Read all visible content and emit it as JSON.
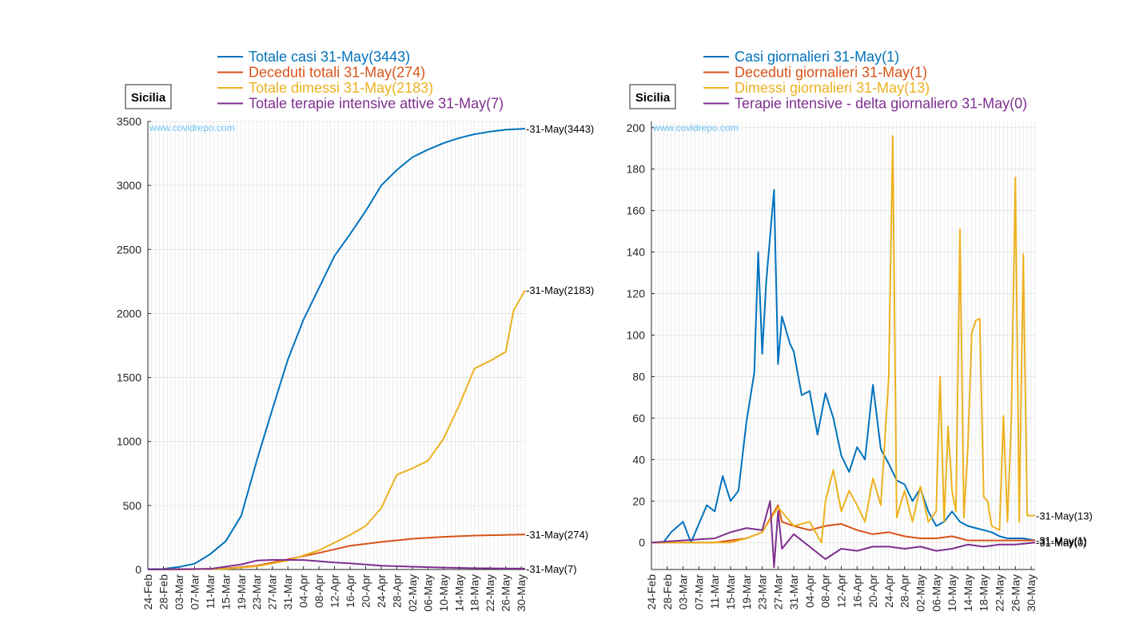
{
  "colors": {
    "blue": "#0072BD",
    "orange": "#D95319",
    "yellow": "#EDB120",
    "purple": "#7E2F8E"
  },
  "chart_data": [
    {
      "type": "line",
      "region_label": "Sicilia",
      "watermark": "www.covidrepo.com",
      "ylim": [
        0,
        3500
      ],
      "yticks": [
        0,
        500,
        1000,
        1500,
        2000,
        2500,
        3000,
        3500
      ],
      "x_start": "2020-02-24",
      "x_end": "2020-05-31",
      "xtick_labels": [
        "24-Feb",
        "28-Feb",
        "03-Mar",
        "07-Mar",
        "11-Mar",
        "15-Mar",
        "19-Mar",
        "23-Mar",
        "27-Mar",
        "31-Mar",
        "04-Apr",
        "08-Apr",
        "12-Apr",
        "16-Apr",
        "20-Apr",
        "24-Apr",
        "28-Apr",
        "02-May",
        "06-May",
        "10-May",
        "14-May",
        "18-May",
        "22-May",
        "26-May",
        "30-May"
      ],
      "grid": true,
      "legend_position": "top",
      "series": [
        {
          "name": "Totale casi 31-May(3443)",
          "color": "#0072BD",
          "end_label": "-31-May(3443)",
          "x": [
            "24-Feb",
            "28-Feb",
            "03-Mar",
            "07-Mar",
            "11-Mar",
            "15-Mar",
            "19-Mar",
            "23-Mar",
            "27-Mar",
            "31-Mar",
            "04-Apr",
            "08-Apr",
            "12-Apr",
            "16-Apr",
            "20-Apr",
            "24-Apr",
            "28-Apr",
            "02-May",
            "06-May",
            "10-May",
            "14-May",
            "18-May",
            "22-May",
            "26-May",
            "31-May"
          ],
          "y": [
            3,
            5,
            20,
            45,
            120,
            220,
            420,
            850,
            1250,
            1640,
            1950,
            2200,
            2450,
            2620,
            2800,
            3000,
            3120,
            3220,
            3280,
            3330,
            3370,
            3400,
            3420,
            3435,
            3443
          ]
        },
        {
          "name": "Deceduti totali 31-May(274)",
          "color": "#D95319",
          "end_label": "-31-May(274)",
          "x": [
            "24-Feb",
            "07-Mar",
            "15-Mar",
            "23-Mar",
            "31-Mar",
            "08-Apr",
            "16-Apr",
            "24-Apr",
            "02-May",
            "10-May",
            "18-May",
            "31-May"
          ],
          "y": [
            0,
            2,
            8,
            30,
            80,
            130,
            185,
            215,
            240,
            255,
            265,
            274
          ]
        },
        {
          "name": "Totale dimessi 31-May(2183)",
          "color": "#EDB120",
          "end_label": "-31-May(2183)",
          "x": [
            "24-Feb",
            "15-Mar",
            "23-Mar",
            "31-Mar",
            "08-Apr",
            "16-Apr",
            "20-Apr",
            "24-Apr",
            "28-Apr",
            "02-May",
            "06-May",
            "10-May",
            "14-May",
            "18-May",
            "22-May",
            "26-May",
            "28-May",
            "31-May"
          ],
          "y": [
            0,
            5,
            25,
            70,
            150,
            270,
            340,
            480,
            740,
            790,
            850,
            1020,
            1280,
            1570,
            1630,
            1700,
            2020,
            2183
          ]
        },
        {
          "name": "Totale terapie intensive attive 31-May(7)",
          "color": "#7E2F8E",
          "end_label": "-31-May(7)",
          "x": [
            "24-Feb",
            "11-Mar",
            "19-Mar",
            "23-Mar",
            "27-Mar",
            "31-Mar",
            "04-Apr",
            "08-Apr",
            "12-Apr",
            "16-Apr",
            "24-Apr",
            "02-May",
            "10-May",
            "18-May",
            "26-May",
            "31-May"
          ],
          "y": [
            0,
            5,
            40,
            70,
            75,
            75,
            74,
            65,
            55,
            48,
            30,
            22,
            15,
            10,
            8,
            7
          ]
        }
      ]
    },
    {
      "type": "line",
      "region_label": "Sicilia",
      "watermark": "www.covidrepo.com",
      "ylim": [
        -13,
        203
      ],
      "yticks": [
        0,
        20,
        40,
        60,
        80,
        100,
        120,
        140,
        160,
        180,
        200
      ],
      "x_start": "2020-02-24",
      "x_end": "2020-05-31",
      "xtick_labels": [
        "24-Feb",
        "28-Feb",
        "03-Mar",
        "07-Mar",
        "11-Mar",
        "15-Mar",
        "19-Mar",
        "23-Mar",
        "27-Mar",
        "31-Mar",
        "04-Apr",
        "08-Apr",
        "12-Apr",
        "16-Apr",
        "20-Apr",
        "24-Apr",
        "28-Apr",
        "02-May",
        "06-May",
        "10-May",
        "14-May",
        "18-May",
        "22-May",
        "26-May",
        "30-May"
      ],
      "grid": true,
      "legend_position": "top",
      "series": [
        {
          "name": "Casi giornalieri 31-May(1)",
          "color": "#0072BD",
          "end_label": "-31-May(1)",
          "x": [
            "24-Feb",
            "27-Feb",
            "29-Feb",
            "03-Mar",
            "05-Mar",
            "09-Mar",
            "11-Mar",
            "13-Mar",
            "15-Mar",
            "17-Mar",
            "19-Mar",
            "21-Mar",
            "22-Mar",
            "23-Mar",
            "24-Mar",
            "26-Mar",
            "27-Mar",
            "28-Mar",
            "30-Mar",
            "31-Mar",
            "02-Apr",
            "04-Apr",
            "06-Apr",
            "08-Apr",
            "10-Apr",
            "12-Apr",
            "14-Apr",
            "16-Apr",
            "18-Apr",
            "20-Apr",
            "22-Apr",
            "24-Apr",
            "26-Apr",
            "28-Apr",
            "30-Apr",
            "02-May",
            "04-May",
            "06-May",
            "08-May",
            "10-May",
            "12-May",
            "14-May",
            "16-May",
            "18-May",
            "20-May",
            "22-May",
            "24-May",
            "26-May",
            "28-May",
            "31-May"
          ],
          "y": [
            0,
            0,
            5,
            10,
            0,
            18,
            15,
            32,
            20,
            25,
            58,
            82,
            140,
            91,
            125,
            170,
            86,
            109,
            96,
            92,
            71,
            73,
            52,
            72,
            60,
            42,
            34,
            46,
            40,
            76,
            45,
            38,
            30,
            28,
            20,
            26,
            15,
            8,
            10,
            15,
            10,
            8,
            7,
            6,
            5,
            3,
            2,
            2,
            2,
            1
          ]
        },
        {
          "name": "Deceduti giornalieri 31-May(1)",
          "color": "#D95319",
          "end_label": "-31-May(1)",
          "x": [
            "24-Feb",
            "11-Mar",
            "19-Mar",
            "23-Mar",
            "27-Mar",
            "28-Mar",
            "31-Mar",
            "04-Apr",
            "08-Apr",
            "12-Apr",
            "16-Apr",
            "20-Apr",
            "24-Apr",
            "28-Apr",
            "02-May",
            "06-May",
            "10-May",
            "14-May",
            "18-May",
            "22-May",
            "26-May",
            "31-May"
          ],
          "y": [
            0,
            0,
            2,
            5,
            18,
            10,
            8,
            6,
            8,
            9,
            6,
            4,
            5,
            3,
            2,
            2,
            3,
            1,
            1,
            1,
            1,
            1
          ]
        },
        {
          "name": "Dimessi giornalieri 31-May(13)",
          "color": "#EDB120",
          "end_label": "-31-May(13)",
          "x": [
            "24-Feb",
            "15-Mar",
            "19-Mar",
            "23-Mar",
            "27-Mar",
            "31-Mar",
            "04-Apr",
            "07-Apr",
            "08-Apr",
            "10-Apr",
            "12-Apr",
            "14-Apr",
            "16-Apr",
            "18-Apr",
            "20-Apr",
            "22-Apr",
            "24-Apr",
            "25-Apr",
            "26-Apr",
            "28-Apr",
            "30-Apr",
            "02-May",
            "04-May",
            "06-May",
            "07-May",
            "08-May",
            "09-May",
            "10-May",
            "11-May",
            "12-May",
            "13-May",
            "14-May",
            "15-May",
            "16-May",
            "17-May",
            "18-May",
            "19-May",
            "20-May",
            "22-May",
            "23-May",
            "24-May",
            "25-May",
            "26-May",
            "27-May",
            "28-May",
            "29-May",
            "30-May",
            "31-May"
          ],
          "y": [
            0,
            0,
            2,
            5,
            17,
            8,
            10,
            0,
            20,
            35,
            15,
            25,
            18,
            10,
            31,
            18,
            80,
            196,
            12,
            25,
            10,
            27,
            10,
            15,
            80,
            10,
            56,
            25,
            15,
            151,
            12,
            46,
            101,
            107,
            108,
            22,
            20,
            8,
            6,
            61,
            10,
            60,
            176,
            10,
            139,
            13,
            13,
            13
          ]
        },
        {
          "name": "Terapie intensive - delta giornaliero 31-May(0)",
          "color": "#7E2F8E",
          "end_label": "-31-May(0)",
          "x": [
            "24-Feb",
            "11-Mar",
            "15-Mar",
            "19-Mar",
            "23-Mar",
            "25-Mar",
            "26-Mar",
            "27-Mar",
            "28-Mar",
            "31-Mar",
            "04-Apr",
            "08-Apr",
            "12-Apr",
            "16-Apr",
            "20-Apr",
            "24-Apr",
            "28-Apr",
            "02-May",
            "06-May",
            "10-May",
            "14-May",
            "18-May",
            "22-May",
            "26-May",
            "31-May"
          ],
          "y": [
            0,
            2,
            5,
            7,
            6,
            20,
            -12,
            15,
            -3,
            4,
            -2,
            -8,
            -3,
            -4,
            -2,
            -2,
            -3,
            -2,
            -4,
            -3,
            -1,
            -2,
            -1,
            -1,
            0
          ]
        }
      ]
    }
  ]
}
